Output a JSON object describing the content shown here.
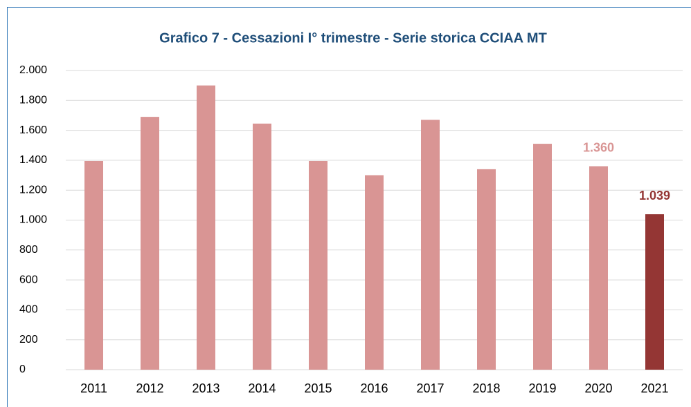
{
  "chart_data": {
    "type": "bar",
    "title": "Grafico 7 - Cessazioni I° trimestre - Serie storica CCIAA MT",
    "categories": [
      "2011",
      "2012",
      "2013",
      "2014",
      "2015",
      "2016",
      "2017",
      "2018",
      "2019",
      "2020",
      "2021"
    ],
    "values": [
      1395,
      1690,
      1900,
      1645,
      1395,
      1300,
      1670,
      1340,
      1510,
      1360,
      1039
    ],
    "value_labels": [
      null,
      null,
      null,
      null,
      null,
      null,
      null,
      null,
      null,
      "1.360",
      "1.039"
    ],
    "colors": [
      "#d99594",
      "#d99594",
      "#d99594",
      "#d99594",
      "#d99594",
      "#d99594",
      "#d99594",
      "#d99594",
      "#d99594",
      "#d99594",
      "#943634"
    ],
    "ylim": [
      0,
      2000
    ],
    "yticks": [
      0,
      200,
      400,
      600,
      800,
      {
        "value": 1000,
        "label": "1.000"
      },
      {
        "value": 1200,
        "label": "1.200"
      },
      {
        "value": 1400,
        "label": "1.400"
      },
      {
        "value": 1600,
        "label": "1.600"
      },
      {
        "value": 1800,
        "label": "1.800"
      },
      {
        "value": 2000,
        "label": "2.000"
      }
    ],
    "grid": true
  }
}
